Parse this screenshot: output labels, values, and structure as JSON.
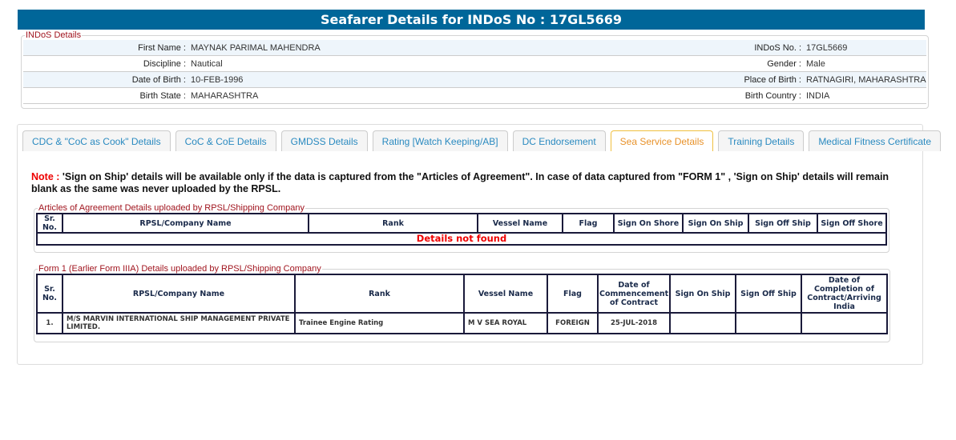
{
  "header": {
    "title": "Seafarer Details for INDoS No : 17GL5669"
  },
  "indos": {
    "legend": "INDoS Details",
    "rows": [
      {
        "l1": "First Name :",
        "v1": "MAYNAK PARIMAL MAHENDRA",
        "l2": "INDoS No. :",
        "v2": "17GL5669"
      },
      {
        "l1": "Discipline :",
        "v1": "Nautical",
        "l2": "Gender :",
        "v2": "Male"
      },
      {
        "l1": "Date of Birth :",
        "v1": "10-FEB-1996",
        "l2": "Place of Birth :",
        "v2": "RATNAGIRI, MAHARASHTRA"
      },
      {
        "l1": "Birth State :",
        "v1": "MAHARASHTRA",
        "l2": "Birth Country :",
        "v2": "INDIA"
      }
    ]
  },
  "tabs": [
    "CDC & \"CoC as Cook\" Details",
    "CoC & CoE Details",
    "GMDSS Details",
    "Rating [Watch Keeping/AB]",
    "DC Endorsement",
    "Sea Service Details",
    "Training Details",
    "Medical Fitness Certificate"
  ],
  "active_tab": "Sea Service Details",
  "note": {
    "label": "Note :",
    "text": " 'Sign on Ship' details will be available only if the data is captured from the \"Articles of Agreement\". In case of data captured from \"FORM 1\" , 'Sign on Ship' details will remain blank as the same was never uploaded by the RPSL."
  },
  "articles": {
    "legend": "Articles of Agreement Details uploaded by RPSL/Shipping Company",
    "headers": [
      "Sr. No.",
      "RPSL/Company Name",
      "Rank",
      "Vessel Name",
      "Flag",
      "Sign On Shore",
      "Sign On Ship",
      "Sign Off Ship",
      "Sign Off Shore"
    ],
    "empty": "Details not found"
  },
  "form1": {
    "legend": "Form 1 (Earlier Form IIIA) Details uploaded by RPSL/Shipping Company",
    "headers": [
      "Sr. No.",
      "RPSL/Company Name",
      "Rank",
      "Vessel Name",
      "Flag",
      "Date of Commencement of Contract",
      "Sign On Ship",
      "Sign Off Ship",
      "Date of Completion of Contract/Arriving India"
    ],
    "rows": [
      [
        "1.",
        "M/S MARVIN INTERNATIONAL SHIP MANAGEMENT PRIVATE LIMITED.",
        "Trainee Engine Rating",
        "M V SEA ROYAL",
        "FOREIGN",
        "25-JUL-2018",
        "",
        "",
        ""
      ]
    ]
  }
}
